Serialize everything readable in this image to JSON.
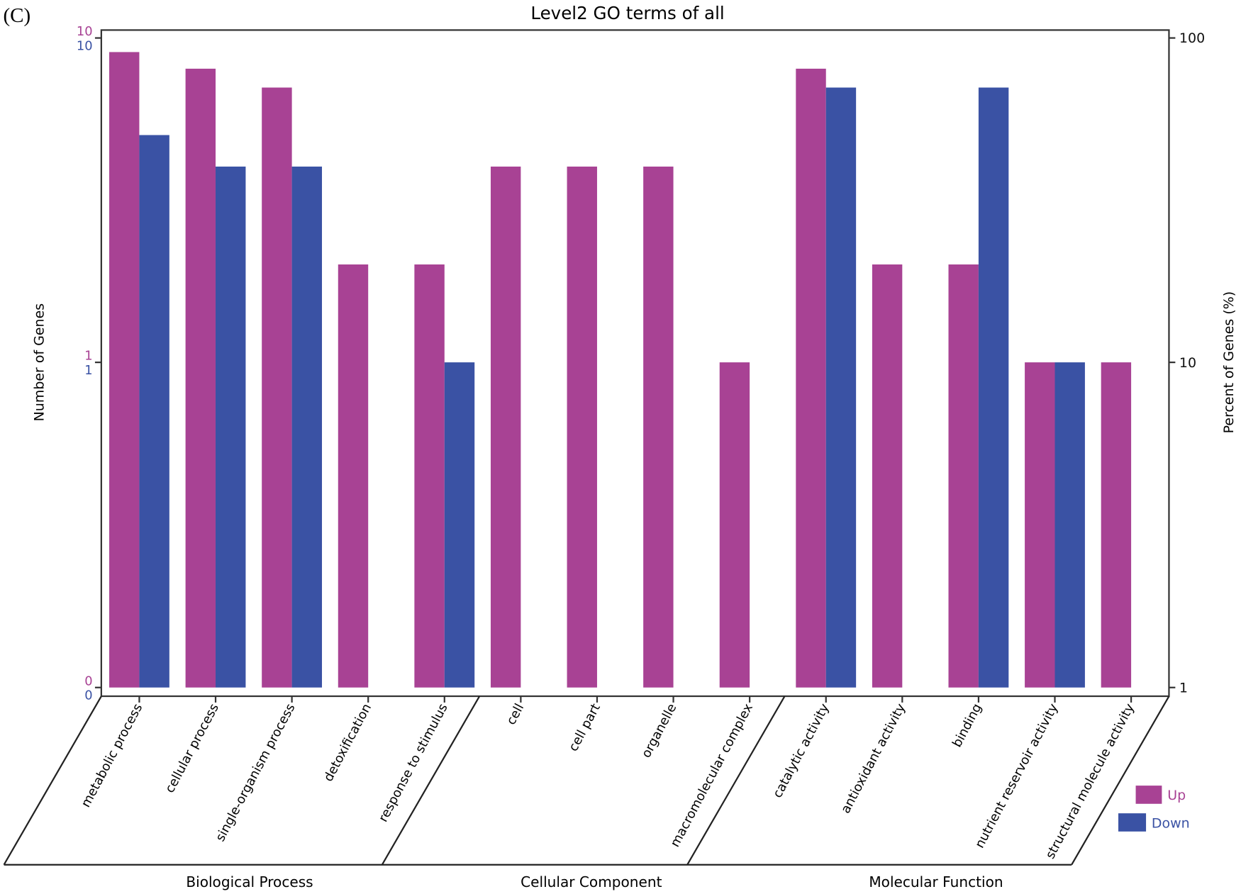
{
  "panel_label": "(C)",
  "chart_data": {
    "type": "bar",
    "title": "Level2 GO terms of all",
    "ylabel": "Number of Genes",
    "y2label": "Percent of Genes (%)",
    "yscale": "log",
    "y_ticks_left": {
      "up": [
        "10",
        "1",
        "0"
      ],
      "down": [
        "10",
        "1",
        "0"
      ]
    },
    "y_ticks_right": [
      "100",
      "10",
      "1"
    ],
    "ylim_percent": [
      1,
      100
    ],
    "grid": false,
    "legend_position": "bottom-right",
    "categories": [
      "metabolic process",
      "cellular process",
      "single-organism process",
      "detoxification",
      "response to stimulus",
      "cell",
      "cell part",
      "organelle",
      "macromolecular complex",
      "catalytic activity",
      "antioxidant activity",
      "binding",
      "nutrient reservoir activity",
      "structural molecule activity"
    ],
    "groups": [
      {
        "name": "Biological Process",
        "count": 5
      },
      {
        "name": "Cellular Component",
        "count": 4
      },
      {
        "name": "Molecular Function",
        "count": 5
      }
    ],
    "series": [
      {
        "name": "Up",
        "color": "#a84294",
        "values": [
          9,
          8,
          7,
          2,
          2,
          4,
          4,
          4,
          1,
          8,
          2,
          2,
          1,
          1
        ]
      },
      {
        "name": "Down",
        "color": "#3a52a4",
        "values": [
          5,
          4,
          4,
          0,
          1,
          0,
          0,
          0,
          0,
          7,
          0,
          7,
          1,
          0
        ]
      }
    ]
  }
}
